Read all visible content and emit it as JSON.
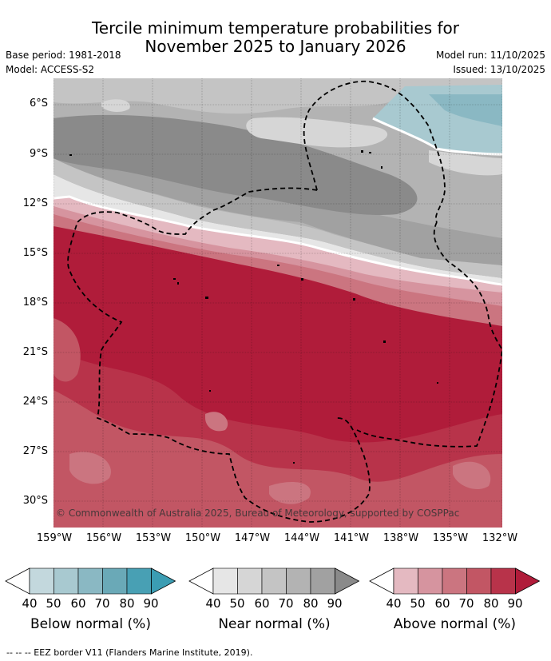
{
  "title": {
    "line1": "Tercile minimum temperature probabilities for",
    "line2": "November 2025 to January 2026"
  },
  "meta": {
    "base_period": "Base period: 1981-2018",
    "model": "Model: ACCESS-S2",
    "model_run": "Model run: 11/10/2025",
    "issued": "Issued: 13/10/2025"
  },
  "axes": {
    "lat_labels": [
      "6°S",
      "9°S",
      "12°S",
      "15°S",
      "18°S",
      "21°S",
      "24°S",
      "27°S",
      "30°S"
    ],
    "lon_labels": [
      "159°W",
      "156°W",
      "153°W",
      "150°W",
      "147°W",
      "144°W",
      "141°W",
      "138°W",
      "135°W",
      "132°W"
    ]
  },
  "copyright": "© Commonwealth of Australia 2025, Bureau of Meteorology, supported by COSPPac",
  "legends": [
    {
      "title": "Below normal (%)",
      "ticks": [
        "40",
        "50",
        "60",
        "70",
        "80",
        "90"
      ],
      "colors": [
        "#c3d8dd",
        "#a8c9d0",
        "#8ab8c3",
        "#6aa9b7",
        "#48a0b4"
      ],
      "tip": "#3b9db3"
    },
    {
      "title": "Near normal (%)",
      "ticks": [
        "40",
        "50",
        "60",
        "70",
        "80",
        "90"
      ],
      "colors": [
        "#e6e6e6",
        "#d6d6d6",
        "#c4c4c4",
        "#b3b3b3",
        "#a1a1a1"
      ],
      "tip": "#8a8a8a"
    },
    {
      "title": "Above normal (%)",
      "ticks": [
        "40",
        "50",
        "60",
        "70",
        "80",
        "90"
      ],
      "colors": [
        "#e4b9c1",
        "#d6949f",
        "#cb7580",
        "#c25664",
        "#b8334a"
      ],
      "tip": "#b01c3a"
    }
  ],
  "footer": "--  --  -- EEZ border V11 (Flanders Marine Institute, 2019).",
  "colors": {
    "near_90": "#8a8a8a",
    "near_80": "#a1a1a1",
    "near_70": "#b3b3b3",
    "near_60": "#c4c4c4",
    "near_50": "#d6d6d6",
    "near_40": "#e6e6e6",
    "below_90": "#5ea7b6",
    "below_80": "#8ab8c3",
    "below_60": "#a8c9d0",
    "below_40": "#c3d8dd",
    "above_90": "#b01c3a",
    "above_80": "#b8334a",
    "above_70": "#c25664",
    "above_60": "#cb7580",
    "above_50": "#d6949f",
    "above_40": "#e4b9c1"
  }
}
